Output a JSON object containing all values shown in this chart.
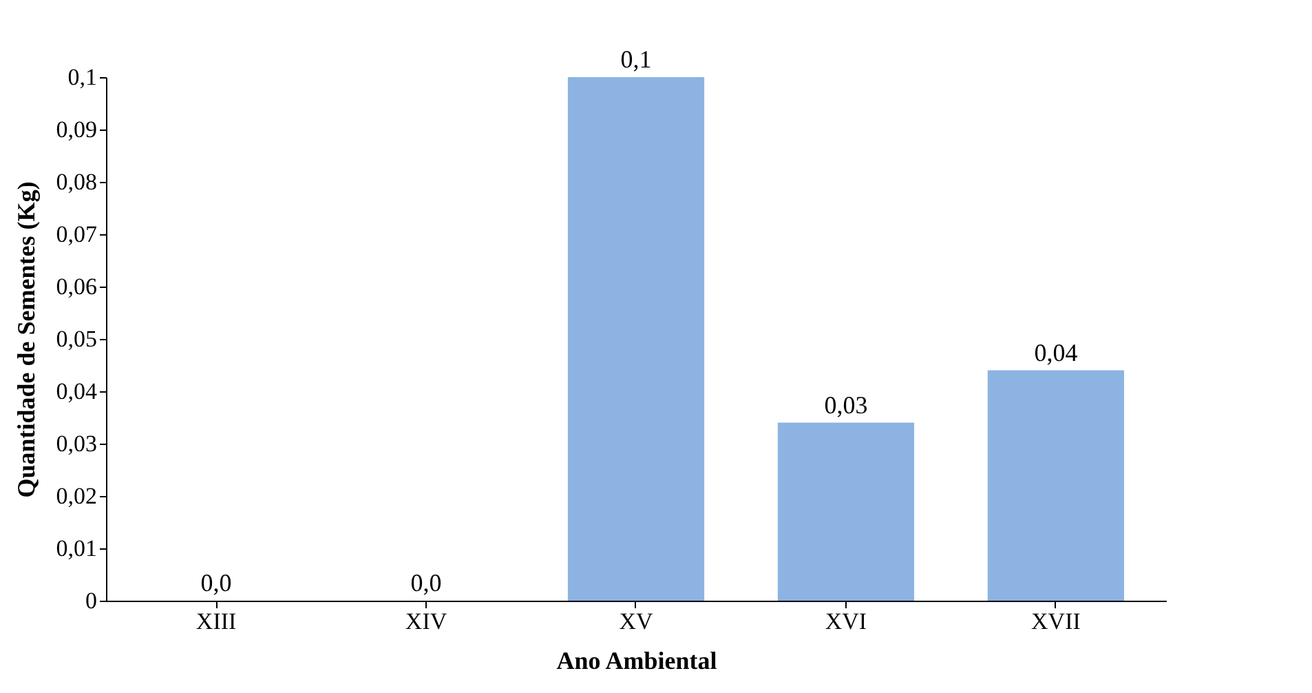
{
  "chart_data": {
    "type": "bar",
    "xlabel": "Ano Ambiental",
    "ylabel": "Quantidade de Sementes (Kg)",
    "categories": [
      "XIII",
      "XIV",
      "XV",
      "XVI",
      "XVII"
    ],
    "values": [
      0,
      0,
      0.1,
      0.034,
      0.044
    ],
    "value_labels": [
      "0,0",
      "0,0",
      "0,1",
      "0,03",
      "0,04"
    ],
    "color": "#8db3e2",
    "ylim": [
      0,
      0.1
    ],
    "yticks": [
      0,
      {
        "value": 0.01,
        "label": "0,01"
      },
      {
        "value": 0.02,
        "label": "0,02"
      },
      {
        "value": 0.03,
        "label": "0,03"
      },
      {
        "value": 0.04,
        "label": "0,04"
      },
      {
        "value": 0.05,
        "label": "0,05"
      },
      {
        "value": 0.06,
        "label": "0,06"
      },
      {
        "value": 0.07,
        "label": "0,07"
      },
      {
        "value": 0.08,
        "label": "0,08"
      },
      {
        "value": 0.09,
        "label": "0,09"
      },
      {
        "value": 0.1,
        "label": "0,1"
      }
    ],
    "grid": false
  }
}
